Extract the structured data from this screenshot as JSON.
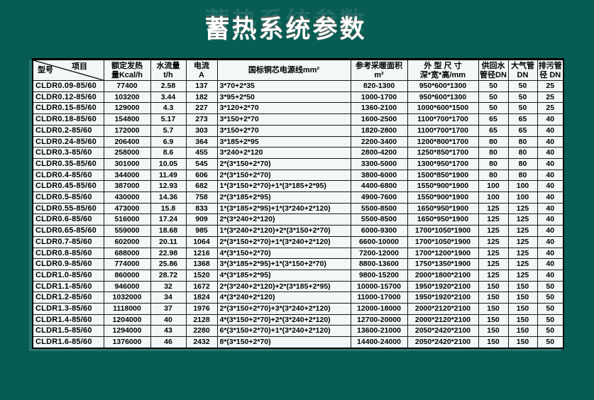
{
  "slide": {
    "title": "蓄热系统参数"
  },
  "colors": {
    "background": "#075D54",
    "table_background": "#F1F8F7",
    "border": "#1A1A1A",
    "title_text": "#FFFFFF",
    "table_text": "#000000"
  },
  "table": {
    "corner": {
      "model_label": "型号",
      "item_label": "项目"
    },
    "headers": [
      {
        "lines": [
          "额定发热",
          "量Kcal/h"
        ]
      },
      {
        "lines": [
          "水流量",
          "t/h"
        ]
      },
      {
        "lines": [
          "电流",
          "A"
        ]
      },
      {
        "lines": [
          "国标铜芯电源线mm²"
        ]
      },
      {
        "lines": [
          "参考采暖面积",
          "m²"
        ]
      },
      {
        "lines": [
          "外 型 尺 寸",
          "深*宽*高/mm"
        ]
      },
      {
        "lines": [
          "供回水",
          "管径DN"
        ]
      },
      {
        "lines": [
          "大气管",
          "DN"
        ]
      },
      {
        "lines": [
          "排污管",
          "径 DN"
        ]
      }
    ],
    "rows": [
      [
        "CLDR0.09-85/60",
        "77400",
        "2.58",
        "137",
        "3*70+2*35",
        "820-1300",
        "950*600*1300",
        "50",
        "50",
        "25"
      ],
      [
        "CLDR0.12-85/60",
        "103200",
        "3.44",
        "182",
        "3*95+2*50",
        "1000-1700",
        "950*600*1300",
        "50",
        "50",
        "25"
      ],
      [
        "CLDR0.15-85/60",
        "129000",
        "4.3",
        "227",
        "3*120+2*70",
        "1360-2100",
        "1000*600*1500",
        "50",
        "50",
        "25"
      ],
      [
        "CLDR0.18-85/60",
        "154800",
        "5.17",
        "273",
        "3*150+2*70",
        "1600-2500",
        "1100*700*1700",
        "65",
        "65",
        "40"
      ],
      [
        "CLDR0.2-85/60",
        "172000",
        "5.7",
        "303",
        "3*150+2*70",
        "1820-2800",
        "1100*700*1700",
        "65",
        "65",
        "40"
      ],
      [
        "CLDR0.24-85/60",
        "206400",
        "6.9",
        "364",
        "3*185+2*95",
        "2200-3400",
        "1200*800*1700",
        "80",
        "80",
        "40"
      ],
      [
        "CLDR0.3-85/60",
        "258000",
        "8.6",
        "455",
        "3*240+2*120",
        "2800-4200",
        "1250*850*1700",
        "80",
        "80",
        "40"
      ],
      [
        "CLDR0.35-85/60",
        "301000",
        "10.05",
        "545",
        "2*(3*150+2*70)",
        "3300-5000",
        "1300*950*1700",
        "80",
        "80",
        "40"
      ],
      [
        "CLDR0.4-85/60",
        "344000",
        "11.49",
        "606",
        "2*(3*150+2*70)",
        "3800-6000",
        "1500*850*1900",
        "80",
        "80",
        "40"
      ],
      [
        "CLDR0.45-85/60",
        "387000",
        "12.93",
        "682",
        "1*(3*150+2*70)+1*(3*185+2*95)",
        "4400-6800",
        "1550*900*1900",
        "100",
        "100",
        "40"
      ],
      [
        "CLDR0.5-85/60",
        "430000",
        "14.36",
        "758",
        "2*(3*185+2*95)",
        "4900-7600",
        "1550*900*1900",
        "100",
        "100",
        "40"
      ],
      [
        "CLDR0.55-85/60",
        "473000",
        "15.8",
        "833",
        "1*(3*185+2*95)+1*(3*240+2*120)",
        "5500-8500",
        "1650*950*1900",
        "125",
        "125",
        "40"
      ],
      [
        "CLDR0.6-85/60",
        "516000",
        "17.24",
        "909",
        "2*(3*240+2*120)",
        "5500-8500",
        "1650*950*1900",
        "125",
        "125",
        "40"
      ],
      [
        "CLDR0.65-85/60",
        "559000",
        "18.68",
        "985",
        "1*(3*240+2*120)+2*(3*150+2*70)",
        "6000-9300",
        "1700*1050*1900",
        "125",
        "125",
        "40"
      ],
      [
        "CLDR0.7-85/60",
        "602000",
        "20.11",
        "1064",
        "2*(3*150+2*70)+1*(3*240+2*120)",
        "6600-10000",
        "1700*1050*1900",
        "125",
        "125",
        "40"
      ],
      [
        "CLDR0.8-85/60",
        "688000",
        "22.98",
        "1216",
        "4*(3*150+2*70)",
        "7200-12000",
        "1700*1200*1900",
        "125",
        "125",
        "40"
      ],
      [
        "CLDR0.9-85/60",
        "774000",
        "25.86",
        "1368",
        "3*(3*185+2*95)+1*(3*150+2*70)",
        "8800-13600",
        "1750*1350*1900",
        "125",
        "125",
        "40"
      ],
      [
        "CLDR1.0-85/60",
        "860000",
        "28.72",
        "1520",
        "4*(3*185+2*95)",
        "9800-15200",
        "2000*1800*2100",
        "125",
        "125",
        "40"
      ],
      [
        "CLDR1.1-85/60",
        "946000",
        "32",
        "1672",
        "2*(3*240+2*120)+2*(3*185+2*95)",
        "10000-15700",
        "1950*1920*2100",
        "150",
        "150",
        "50"
      ],
      [
        "CLDR1.2-85/60",
        "1032000",
        "34",
        "1824",
        "4*(3*240+2*120)",
        "11000-17000",
        "1950*1920*2100",
        "150",
        "150",
        "50"
      ],
      [
        "CLDR1.3-85/60",
        "1118000",
        "37",
        "1976",
        "2*(3*150+2*70)+3*(3*240+2*120)",
        "12000-18000",
        "2000*2120*2100",
        "150",
        "150",
        "50"
      ],
      [
        "CLDR1.4-85/60",
        "1204000",
        "40",
        "2128",
        "4*(3*150+2*70)+2*(3*240+2*120)",
        "12700-20000",
        "2000*2120*2100",
        "150",
        "150",
        "50"
      ],
      [
        "CLDR1.5-85/60",
        "1294000",
        "43",
        "2280",
        "6*(3*150+2*70)+1*(3*240+2*120)",
        "13600-21000",
        "2050*2420*2100",
        "150",
        "150",
        "50"
      ],
      [
        "CLDR1.6-85/60",
        "1376000",
        "46",
        "2432",
        "8*(3*150+2*70)",
        "14400-24000",
        "2050*2420*2100",
        "150",
        "150",
        "50"
      ]
    ]
  }
}
